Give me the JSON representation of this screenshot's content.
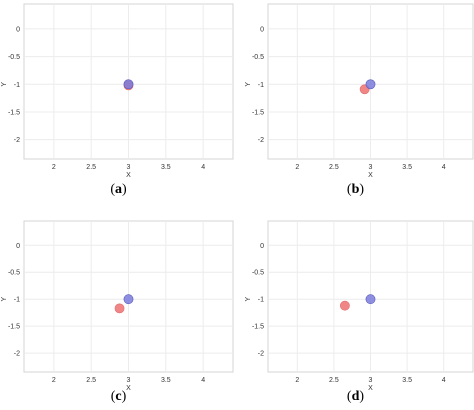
{
  "chart_data": [
    {
      "type": "scatter",
      "label": "a",
      "xlabel": "X",
      "ylabel": "Y",
      "xlim": [
        1.6,
        4.4
      ],
      "ylim": [
        -2.35,
        0.45
      ],
      "xticks": [
        "2",
        "2.5",
        "3",
        "3.5",
        "4"
      ],
      "yticks": [
        "0",
        "-0.5",
        "-1",
        "-1.5",
        "-2"
      ],
      "grid": true,
      "series": [
        {
          "color": "#f08080",
          "points": [
            [
              3.0,
              -1.02
            ]
          ]
        },
        {
          "color": "#7b7bdc",
          "points": [
            [
              3.0,
              -1.0
            ]
          ]
        }
      ]
    },
    {
      "type": "scatter",
      "label": "b",
      "xlabel": "X",
      "ylabel": "Y",
      "xlim": [
        1.6,
        4.4
      ],
      "ylim": [
        -2.35,
        0.45
      ],
      "xticks": [
        "2",
        "2.5",
        "3",
        "3.5",
        "4"
      ],
      "yticks": [
        "0",
        "-0.5",
        "-1",
        "-1.5",
        "-2"
      ],
      "grid": true,
      "series": [
        {
          "color": "#f08080",
          "points": [
            [
              2.92,
              -1.09
            ]
          ]
        },
        {
          "color": "#7b7bdc",
          "points": [
            [
              3.0,
              -1.0
            ]
          ]
        }
      ]
    },
    {
      "type": "scatter",
      "label": "c",
      "xlabel": "X",
      "ylabel": "Y",
      "xlim": [
        1.6,
        4.4
      ],
      "ylim": [
        -2.35,
        0.45
      ],
      "xticks": [
        "2",
        "2.5",
        "3",
        "3.5",
        "4"
      ],
      "yticks": [
        "0",
        "-0.5",
        "-1",
        "-1.5",
        "-2"
      ],
      "grid": true,
      "series": [
        {
          "color": "#f08080",
          "points": [
            [
              2.88,
              -1.17
            ]
          ]
        },
        {
          "color": "#7b7bdc",
          "points": [
            [
              3.0,
              -1.0
            ]
          ]
        }
      ]
    },
    {
      "type": "scatter",
      "label": "d",
      "xlabel": "X",
      "ylabel": "Y",
      "xlim": [
        1.6,
        4.4
      ],
      "ylim": [
        -2.35,
        0.45
      ],
      "xticks": [
        "2",
        "2.5",
        "3",
        "3.5",
        "4"
      ],
      "yticks": [
        "0",
        "-0.5",
        "-1",
        "-1.5",
        "-2"
      ],
      "grid": true,
      "series": [
        {
          "color": "#f08080",
          "points": [
            [
              2.65,
              -1.12
            ]
          ]
        },
        {
          "color": "#7b7bdc",
          "points": [
            [
              3.0,
              -1.0
            ]
          ]
        }
      ]
    }
  ],
  "captions": [
    {
      "open": "(",
      "letter": "a",
      "close": ")"
    },
    {
      "open": "(",
      "letter": "b",
      "close": ")"
    },
    {
      "open": "(",
      "letter": "c",
      "close": ")"
    },
    {
      "open": "(",
      "letter": "d",
      "close": ")"
    }
  ]
}
